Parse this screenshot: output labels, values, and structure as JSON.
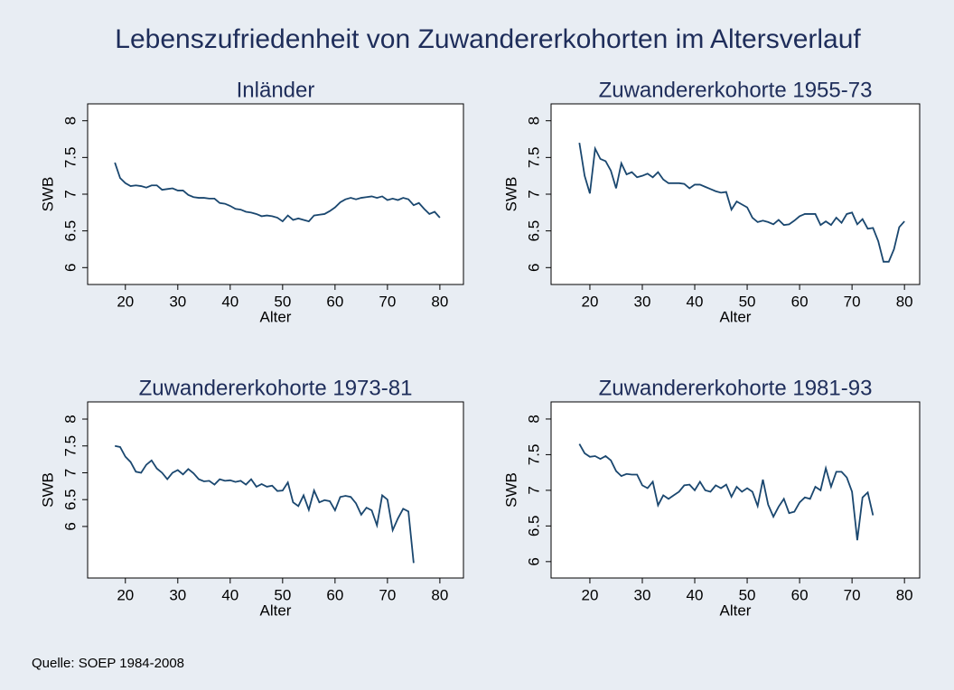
{
  "title": "Lebenszufriedenheit von Zuwandererkohorten im Altersverlauf",
  "note": "Quelle: SOEP 1984-2008",
  "chart_data": [
    {
      "type": "line",
      "title": "Inländer",
      "x_label": "Alter",
      "y_label": "SWB",
      "color": "#1a476f",
      "xlim": [
        12.8,
        84.5
      ],
      "xticks": [
        20,
        30,
        40,
        50,
        60,
        70,
        80
      ],
      "ylim": [
        5.77,
        8.23
      ],
      "yticks": [
        6,
        6.5,
        7,
        7.5,
        8
      ],
      "x": [
        18,
        19,
        20,
        21,
        22,
        23,
        24,
        25,
        26,
        27,
        28,
        29,
        30,
        31,
        32,
        33,
        34,
        35,
        36,
        37,
        38,
        39,
        40,
        41,
        42,
        43,
        44,
        45,
        46,
        47,
        48,
        49,
        50,
        51,
        52,
        53,
        54,
        55,
        56,
        57,
        58,
        59,
        60,
        61,
        62,
        63,
        64,
        65,
        66,
        67,
        68,
        69,
        70,
        71,
        72,
        73,
        74,
        75,
        76,
        77,
        78,
        79,
        80
      ],
      "values": [
        7.43,
        7.22,
        7.15,
        7.11,
        7.12,
        7.11,
        7.09,
        7.12,
        7.12,
        7.06,
        7.07,
        7.08,
        7.05,
        7.05,
        6.99,
        6.96,
        6.95,
        6.95,
        6.94,
        6.94,
        6.88,
        6.87,
        6.84,
        6.8,
        6.79,
        6.76,
        6.75,
        6.73,
        6.7,
        6.71,
        6.7,
        6.68,
        6.63,
        6.71,
        6.65,
        6.67,
        6.65,
        6.63,
        6.71,
        6.72,
        6.73,
        6.77,
        6.82,
        6.89,
        6.93,
        6.95,
        6.93,
        6.95,
        6.96,
        6.97,
        6.95,
        6.97,
        6.92,
        6.94,
        6.92,
        6.95,
        6.93,
        6.85,
        6.88,
        6.8,
        6.73,
        6.76,
        6.68
      ]
    },
    {
      "type": "line",
      "title": "Zuwandererkohorte 1955-73",
      "x_label": "Alter",
      "y_label": "SWB",
      "color": "#1a476f",
      "xlim": [
        12.6,
        82.9
      ],
      "xticks": [
        20,
        30,
        40,
        50,
        60,
        70,
        80
      ],
      "ylim": [
        5.77,
        8.23
      ],
      "yticks": [
        6,
        6.5,
        7,
        7.5,
        8
      ],
      "x": [
        18,
        19,
        20,
        21,
        22,
        23,
        24,
        25,
        26,
        27,
        28,
        29,
        30,
        31,
        32,
        33,
        34,
        35,
        36,
        37,
        38,
        39,
        40,
        41,
        42,
        43,
        44,
        45,
        46,
        47,
        48,
        49,
        50,
        51,
        52,
        53,
        54,
        55,
        56,
        57,
        58,
        59,
        60,
        61,
        62,
        63,
        64,
        65,
        66,
        67,
        68,
        69,
        70,
        71,
        72,
        73,
        74,
        75,
        76,
        77,
        78,
        79,
        80
      ],
      "values": [
        7.7,
        7.25,
        7.01,
        7.62,
        7.48,
        7.45,
        7.32,
        7.08,
        7.42,
        7.27,
        7.3,
        7.23,
        7.25,
        7.28,
        7.23,
        7.3,
        7.2,
        7.15,
        7.15,
        7.15,
        7.14,
        7.08,
        7.13,
        7.13,
        7.1,
        7.07,
        7.04,
        7.02,
        7.03,
        6.79,
        6.9,
        6.86,
        6.82,
        6.68,
        6.62,
        6.64,
        6.62,
        6.59,
        6.65,
        6.58,
        6.59,
        6.64,
        6.7,
        6.73,
        6.73,
        6.73,
        6.58,
        6.63,
        6.58,
        6.68,
        6.61,
        6.73,
        6.75,
        6.59,
        6.66,
        6.53,
        6.54,
        6.36,
        6.08,
        6.08,
        6.25,
        6.55,
        6.63
      ]
    },
    {
      "type": "line",
      "title": "Zuwandererkohorte 1973-81",
      "x_label": "Alter",
      "y_label": "SWB",
      "color": "#1a476f",
      "xlim": [
        12.8,
        84.5
      ],
      "xticks": [
        20,
        30,
        40,
        50,
        60,
        70,
        80
      ],
      "ylim": [
        5.04,
        8.32
      ],
      "yticks": [
        6,
        6.5,
        7,
        7.5,
        8
      ],
      "x": [
        18,
        19,
        20,
        21,
        22,
        23,
        24,
        25,
        26,
        27,
        28,
        29,
        30,
        31,
        32,
        33,
        34,
        35,
        36,
        37,
        38,
        39,
        40,
        41,
        42,
        43,
        44,
        45,
        46,
        47,
        48,
        49,
        50,
        51,
        52,
        53,
        54,
        55,
        56,
        57,
        58,
        59,
        60,
        61,
        62,
        63,
        64,
        65,
        66,
        67,
        68,
        69,
        70,
        71,
        72,
        73,
        74,
        75
      ],
      "values": [
        7.5,
        7.48,
        7.3,
        7.2,
        7.02,
        7.0,
        7.15,
        7.23,
        7.08,
        7.0,
        6.88,
        7.0,
        7.05,
        6.97,
        7.07,
        6.99,
        6.88,
        6.84,
        6.85,
        6.78,
        6.88,
        6.85,
        6.86,
        6.83,
        6.85,
        6.78,
        6.88,
        6.74,
        6.79,
        6.74,
        6.76,
        6.66,
        6.67,
        6.82,
        6.45,
        6.38,
        6.58,
        6.31,
        6.67,
        6.45,
        6.49,
        6.47,
        6.3,
        6.55,
        6.57,
        6.55,
        6.43,
        6.22,
        6.35,
        6.3,
        6.02,
        6.58,
        6.5,
        5.93,
        6.15,
        6.33,
        6.28,
        5.32
      ]
    },
    {
      "type": "line",
      "title": "Zuwandererkohorte 1981-93",
      "x_label": "Alter",
      "y_label": "SWB",
      "color": "#1a476f",
      "xlim": [
        12.6,
        82.9
      ],
      "xticks": [
        20,
        30,
        40,
        50,
        60,
        70,
        80
      ],
      "ylim": [
        5.77,
        8.24
      ],
      "yticks": [
        6,
        6.5,
        7,
        7.5,
        8
      ],
      "x": [
        18,
        19,
        20,
        21,
        22,
        23,
        24,
        25,
        26,
        27,
        28,
        29,
        30,
        31,
        32,
        33,
        34,
        35,
        36,
        37,
        38,
        39,
        40,
        41,
        42,
        43,
        44,
        45,
        46,
        47,
        48,
        49,
        50,
        51,
        52,
        53,
        54,
        55,
        56,
        57,
        58,
        59,
        60,
        61,
        62,
        63,
        64,
        65,
        66,
        67,
        68,
        69,
        70,
        71,
        72,
        73,
        74
      ],
      "values": [
        7.65,
        7.52,
        7.47,
        7.48,
        7.44,
        7.48,
        7.42,
        7.27,
        7.2,
        7.23,
        7.22,
        7.22,
        7.07,
        7.03,
        7.12,
        6.79,
        6.93,
        6.88,
        6.93,
        6.98,
        7.07,
        7.08,
        7.0,
        7.12,
        7.0,
        6.98,
        7.07,
        7.03,
        7.08,
        6.91,
        7.05,
        6.98,
        7.03,
        6.98,
        6.78,
        7.15,
        6.8,
        6.63,
        6.77,
        6.88,
        6.68,
        6.7,
        6.83,
        6.9,
        6.88,
        7.05,
        7.0,
        7.31,
        7.05,
        7.26,
        7.26,
        7.18,
        6.98,
        6.3,
        6.9,
        6.97,
        6.65
      ]
    }
  ]
}
